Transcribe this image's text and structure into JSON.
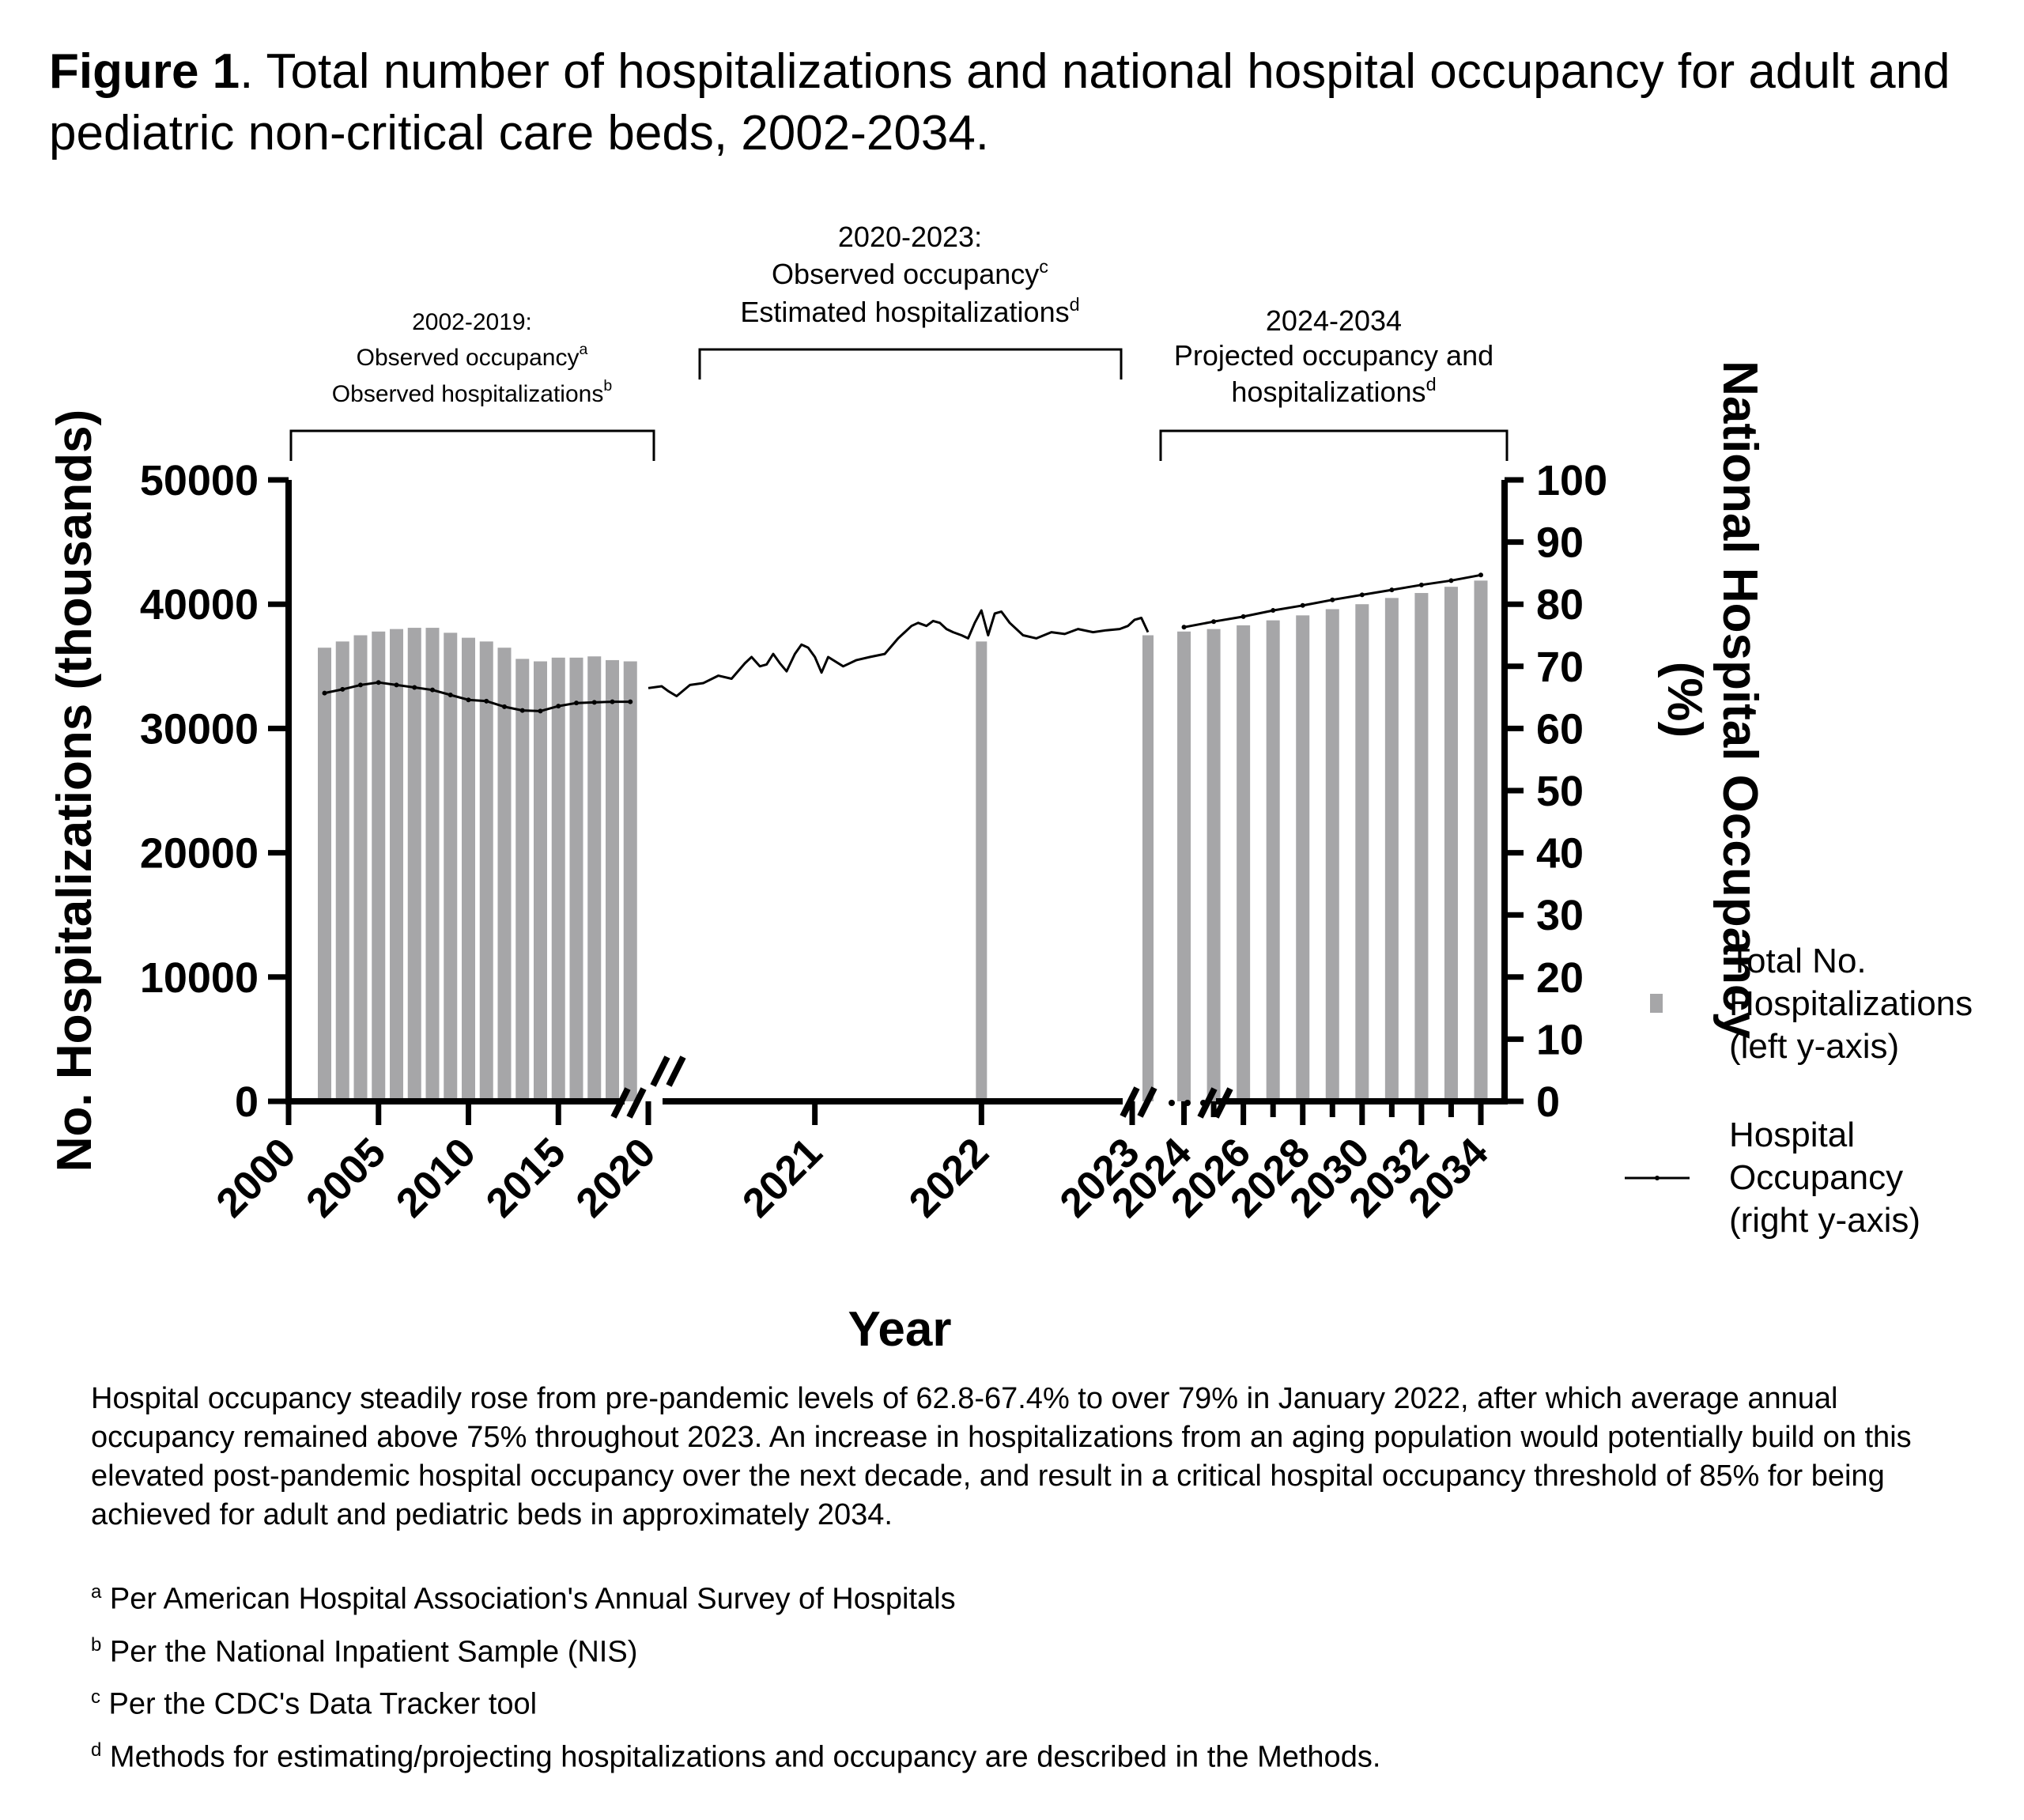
{
  "figure": {
    "label": "Figure 1",
    "title": ". Total number of hospitalizations and national hospital occupancy for adult and pediatric non-critical care beds, 2002-2034."
  },
  "chart_data": {
    "type": "bar",
    "xlabel": "Year",
    "ylabel_left": "No. Hospitalizations  (thousands)",
    "ylabel_right": "National Hospital Occupancy  (%)",
    "ylim_left": [
      0,
      50000
    ],
    "ylim_right": [
      0,
      100
    ],
    "left_ticks": [
      "0",
      "10000",
      "20000",
      "30000",
      "40000",
      "50000"
    ],
    "right_ticks": [
      "0",
      "10",
      "20",
      "30",
      "40",
      "50",
      "60",
      "70",
      "80",
      "90",
      "100"
    ],
    "x_tick_labels": [
      "2000",
      "2005",
      "2010",
      "2015",
      "2020",
      "2021",
      "2022",
      "2023",
      "2024",
      "2026",
      "2028",
      "2030",
      "2032",
      "2034"
    ],
    "grid": false,
    "legend_position": "right",
    "legend": [
      {
        "text": "Total No. Hospitalizations (left y-axis)",
        "lines": [
          "Total No.",
          "Hospitalizations",
          "(left y-axis)"
        ]
      },
      {
        "text": "Hospital Occupancy (right y-axis)",
        "lines": [
          "Hospital",
          "Occupancy",
          "(right y-axis)"
        ]
      }
    ],
    "bar_color": "#a6a6a8",
    "line_color": "#000000",
    "period_annotations": [
      {
        "range": "2002-2019",
        "lines": [
          {
            "text": "2002-2019:",
            "sup": ""
          },
          {
            "text": "Observed occupancy",
            "sup": "a"
          },
          {
            "text": "Observed hospitalizations",
            "sup": "b"
          }
        ]
      },
      {
        "range": "2020-2023",
        "lines": [
          {
            "text": "2020-2023:",
            "sup": ""
          },
          {
            "text": "Observed occupancy",
            "sup": "c"
          },
          {
            "text": "Estimated  hospitalizations",
            "sup": "d"
          }
        ]
      },
      {
        "range": "2024-2034",
        "lines": [
          {
            "text": "2024-2034",
            "sup": ""
          },
          {
            "text": "Projected occupancy and",
            "sup": ""
          },
          {
            "text": "hospitalizations",
            "sup": "d"
          }
        ]
      }
    ],
    "series": [
      {
        "name": "Total No. Hospitalizations",
        "axis": "left",
        "kind": "bar",
        "x": [
          2002,
          2003,
          2004,
          2005,
          2006,
          2007,
          2008,
          2009,
          2010,
          2011,
          2012,
          2013,
          2014,
          2015,
          2016,
          2017,
          2018,
          2019,
          2022,
          2023,
          2024,
          2025,
          2026,
          2027,
          2028,
          2029,
          2030,
          2031,
          2032,
          2033,
          2034
        ],
        "values": [
          36500,
          37000,
          37500,
          37800,
          38000,
          38100,
          38100,
          37700,
          37300,
          37000,
          36500,
          35600,
          35400,
          35700,
          35700,
          35800,
          35500,
          35400,
          37000,
          37500,
          37800,
          38000,
          38300,
          38700,
          39100,
          39600,
          40000,
          40500,
          40900,
          41400,
          41900
        ]
      },
      {
        "name": "Hospital Occupancy",
        "axis": "right",
        "kind": "line",
        "segments": [
          {
            "period": "2002-2019",
            "x": [
              2002,
              2003,
              2004,
              2005,
              2006,
              2007,
              2008,
              2009,
              2010,
              2011,
              2012,
              2013,
              2014,
              2015,
              2016,
              2017,
              2018,
              2019
            ],
            "values": [
              65.7,
              66.3,
              67.0,
              67.4,
              67.0,
              66.6,
              66.2,
              65.4,
              64.6,
              64.4,
              63.5,
              62.9,
              62.8,
              63.6,
              64.1,
              64.2,
              64.3,
              64.3
            ]
          },
          {
            "period": "2020-2023",
            "x": [
              2020.0,
              2020.08,
              2020.12,
              2020.17,
              2020.25,
              2020.33,
              2020.42,
              2020.5,
              2020.58,
              2020.62,
              2020.67,
              2020.71,
              2020.75,
              2020.79,
              2020.83,
              2020.88,
              2020.92,
              2020.96,
              2021.0,
              2021.04,
              2021.08,
              2021.17,
              2021.25,
              2021.33,
              2021.42,
              2021.5,
              2021.58,
              2021.62,
              2021.67,
              2021.71,
              2021.75,
              2021.79,
              2021.83,
              2021.88,
              2021.92,
              2021.96,
              2022.0,
              2022.04,
              2022.08,
              2022.12,
              2022.17,
              2022.25,
              2022.33,
              2022.42,
              2022.5,
              2022.58,
              2022.67,
              2022.75,
              2022.83,
              2022.88,
              2022.92,
              2022.96,
              2023.0
            ],
            "values": [
              66.5,
              66.8,
              66.0,
              65.2,
              67.0,
              67.3,
              68.5,
              68.0,
              70.5,
              71.5,
              70.0,
              70.3,
              72.0,
              70.5,
              69.2,
              72.0,
              73.5,
              73.0,
              71.5,
              69.0,
              71.5,
              70.0,
              71.0,
              71.5,
              72.0,
              74.5,
              76.5,
              77.0,
              76.5,
              77.3,
              77.0,
              76.0,
              75.5,
              75.0,
              74.5,
              77.0,
              79.0,
              75.0,
              78.5,
              78.8,
              77.0,
              75.0,
              74.5,
              75.5,
              75.2,
              76.0,
              75.5,
              75.8,
              76.0,
              76.5,
              77.5,
              77.8,
              75.5
            ]
          },
          {
            "period": "2024-2034",
            "x": [
              2024,
              2025,
              2026,
              2027,
              2028,
              2029,
              2030,
              2031,
              2032,
              2033,
              2034
            ],
            "values": [
              76.3,
              77.2,
              78.0,
              79.0,
              79.8,
              80.7,
              81.5,
              82.3,
              83.1,
              83.8,
              84.7
            ]
          }
        ]
      }
    ]
  },
  "description": "Hospital occupancy steadily rose from pre-pandemic levels of 62.8-67.4% to over 79% in January 2022, after which average annual occupancy remained above 75% throughout 2023. An increase in hospitalizations from an aging population would potentially build on this elevated post-pandemic hospital occupancy over the next decade, and result in a critical hospital occupancy threshold of 85% for being achieved for adult and pediatric beds in approximately 2034.",
  "footnotes": [
    {
      "sup": "a",
      "text": " Per American Hospital  Association's Annual Survey of Hospitals"
    },
    {
      "sup": "b",
      "text": " Per the National Inpatient Sample (NIS)"
    },
    {
      "sup": "c",
      "text": " Per the CDC's Data Tracker tool"
    },
    {
      "sup": "d",
      "text": " Methods for estimating/projecting hospitalizations and occupancy are described in the Methods."
    }
  ]
}
